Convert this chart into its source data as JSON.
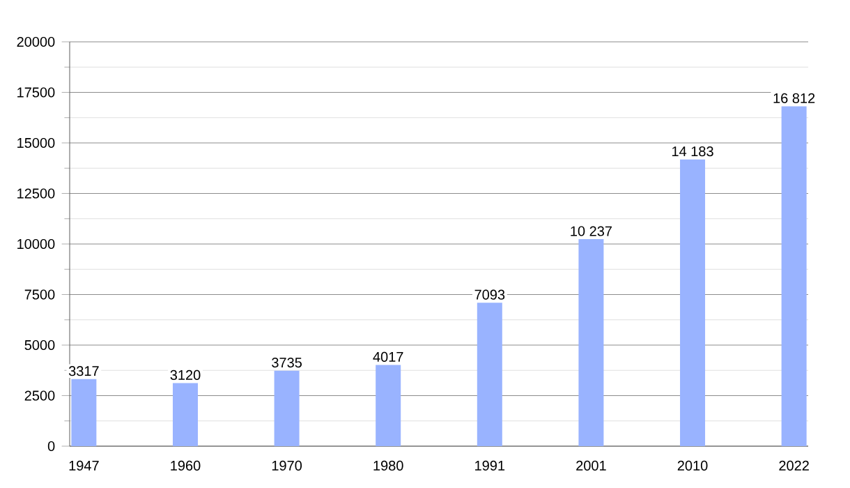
{
  "chart_data": {
    "type": "bar",
    "categories": [
      "1947",
      "1960",
      "1970",
      "1980",
      "1991",
      "2001",
      "2010",
      "2022"
    ],
    "values": [
      3317,
      3120,
      3735,
      4017,
      7093,
      10237,
      14183,
      16812
    ],
    "value_labels": [
      "3317",
      "3120",
      "3735",
      "4017",
      "7093",
      "10 237",
      "14 183",
      "16 812"
    ],
    "color": "#99b3ff",
    "ylim": [
      0,
      20000
    ],
    "yticks": [
      0,
      {
        "value": 1250,
        "label": null
      },
      2500,
      {
        "value": 3750,
        "label": null
      },
      5000,
      {
        "value": 6250,
        "label": null
      },
      7500,
      {
        "value": 8750,
        "label": null
      },
      10000,
      {
        "value": 11250,
        "label": null
      },
      12500,
      {
        "value": 13750,
        "label": null
      },
      15000,
      {
        "value": 16250,
        "label": null
      },
      17500,
      {
        "value": 18750,
        "label": null
      },
      20000
    ],
    "grid": "y"
  }
}
